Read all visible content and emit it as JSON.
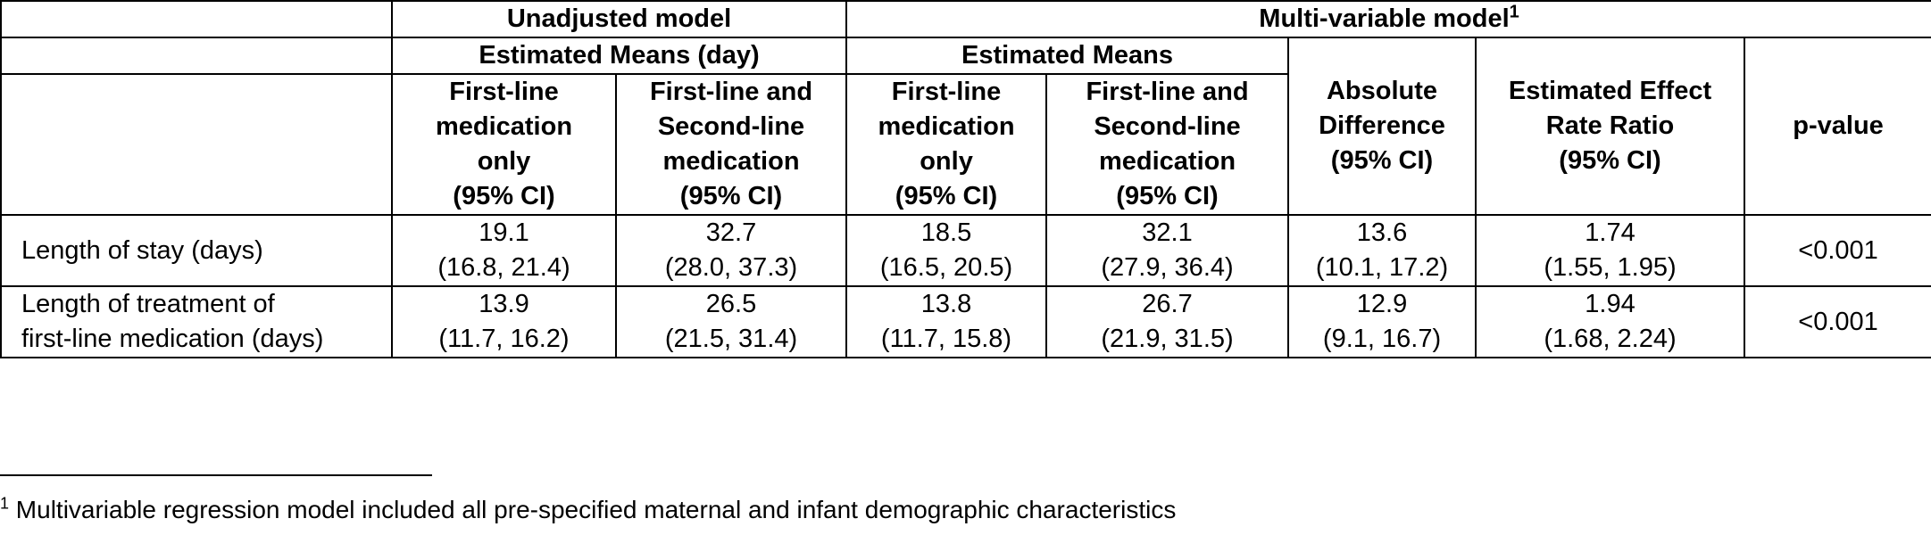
{
  "header": {
    "unadjusted": "Unadjusted model",
    "multivariable": "Multi-variable model",
    "multivariable_sup": "1",
    "estimated_means_day": "Estimated Means (day)",
    "estimated_means": "Estimated Means",
    "first_line_only": [
      "First-line",
      "medication",
      "only",
      "(95% CI)"
    ],
    "first_and_second": [
      "First-line and",
      "Second-line",
      "medication",
      "(95% CI)"
    ],
    "absolute_difference": [
      "Absolute",
      "Difference",
      "(95% CI)"
    ],
    "rate_ratio": [
      "Estimated Effect",
      "Rate Ratio",
      "(95% CI)"
    ],
    "p_value": "p-value"
  },
  "rows": [
    {
      "label": [
        "Length of stay (days)"
      ],
      "unadj_first": [
        "19.1",
        "(16.8, 21.4)"
      ],
      "unadj_both": [
        "32.7",
        "(28.0, 37.3)"
      ],
      "multi_first": [
        "18.5",
        "(16.5, 20.5)"
      ],
      "multi_both": [
        "32.1",
        "(27.9, 36.4)"
      ],
      "abs_diff": [
        "13.6",
        "(10.1, 17.2)"
      ],
      "ratio": [
        "1.74",
        "(1.55, 1.95)"
      ],
      "p": "<0.001"
    },
    {
      "label": [
        "Length of treatment of",
        "first-line medication (days)"
      ],
      "unadj_first": [
        "13.9",
        "(11.7, 16.2)"
      ],
      "unadj_both": [
        "26.5",
        "(21.5, 31.4)"
      ],
      "multi_first": [
        "13.8",
        "(11.7, 15.8)"
      ],
      "multi_both": [
        "26.7",
        "(21.9, 31.5)"
      ],
      "abs_diff": [
        "12.9",
        "(9.1, 16.7)"
      ],
      "ratio": [
        "1.94",
        "(1.68, 2.24)"
      ],
      "p": "<0.001"
    }
  ],
  "footnote": {
    "marker": "1",
    "text": " Multivariable regression model included all pre-specified maternal and infant demographic characteristics"
  }
}
